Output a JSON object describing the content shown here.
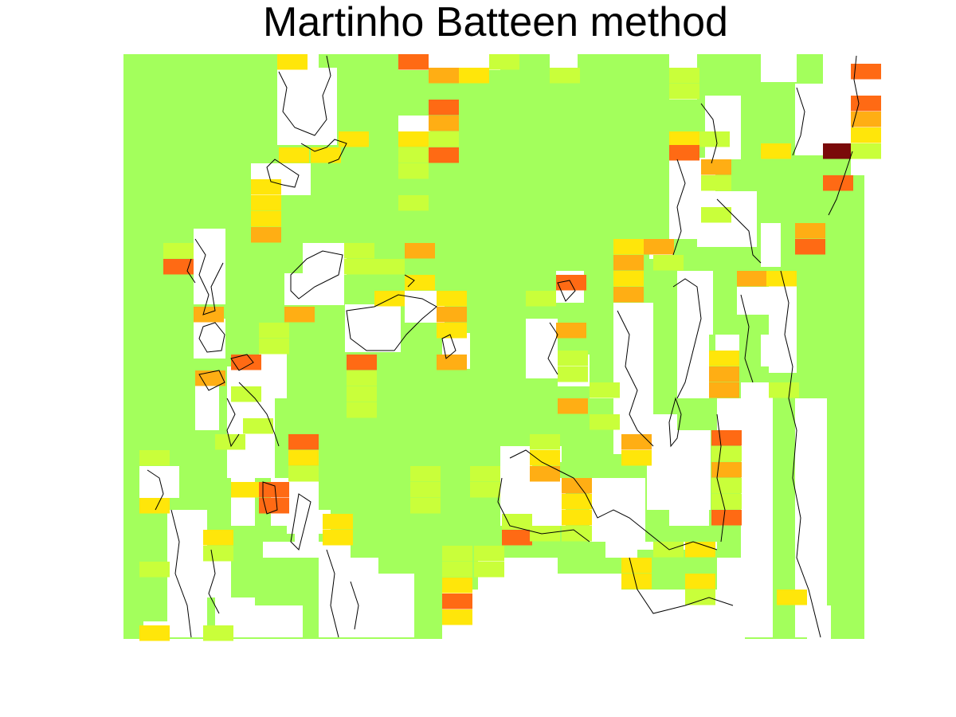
{
  "title": "Martinho Batteen method",
  "colors": {
    "background": "#ffffff",
    "base": "#a3ff5c",
    "lime": "#c9ff3a",
    "yellow": "#ffe60a",
    "orange": "#ffae14",
    "red": "#ff6a14",
    "darkred": "#7a0a0a",
    "coast": "#000000"
  },
  "legend_note": ""
}
